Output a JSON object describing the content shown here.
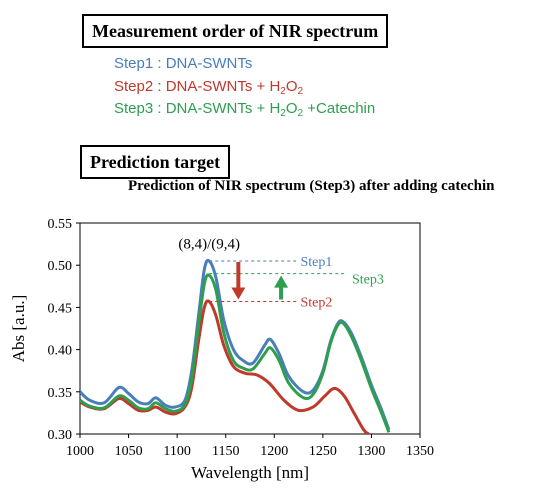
{
  "measurement_box": {
    "title": "Measurement order of NIR spectrum"
  },
  "steps": [
    {
      "prefix": "Step1 : DNA-SWNTs",
      "h2o2": "",
      "suffix": "",
      "color": "#4a7ebb"
    },
    {
      "prefix": "Step2 : DNA-SWNTs + H",
      "h2o2": "2",
      "mid": "O",
      "h2o2b": "2",
      "suffix": "",
      "color": "#c0392b"
    },
    {
      "prefix": "Step3 : DNA-SWNTs + H",
      "h2o2": "2",
      "mid": "O",
      "h2o2b": "2",
      "suffix": " +Catechin",
      "color": "#2e9e4f"
    }
  ],
  "prediction_box": {
    "title": "Prediction target"
  },
  "chart_data": {
    "type": "line",
    "title": "Prediction of NIR spectrum (Step3) after adding catechin",
    "xlabel": "Wavelength [nm]",
    "ylabel": "Abs [a.u.]",
    "xlim": [
      1000,
      1350
    ],
    "ylim": [
      0.3,
      0.55
    ],
    "xticks": [
      "1000",
      "1050",
      "1100",
      "1150",
      "1200",
      "1250",
      "1300",
      "1350"
    ],
    "yticks": [
      "0.30",
      "0.35",
      "0.40",
      "0.45",
      "0.50",
      "0.55"
    ],
    "series": [
      {
        "name": "Step1",
        "color": "#4a7ebb",
        "points": [
          [
            1000,
            0.35
          ],
          [
            1010,
            0.34
          ],
          [
            1025,
            0.337
          ],
          [
            1040,
            0.355
          ],
          [
            1050,
            0.348
          ],
          [
            1060,
            0.338
          ],
          [
            1070,
            0.336
          ],
          [
            1078,
            0.343
          ],
          [
            1088,
            0.334
          ],
          [
            1098,
            0.332
          ],
          [
            1108,
            0.34
          ],
          [
            1115,
            0.375
          ],
          [
            1122,
            0.44
          ],
          [
            1128,
            0.495
          ],
          [
            1133,
            0.505
          ],
          [
            1140,
            0.485
          ],
          [
            1148,
            0.435
          ],
          [
            1158,
            0.4
          ],
          [
            1168,
            0.387
          ],
          [
            1178,
            0.384
          ],
          [
            1190,
            0.405
          ],
          [
            1196,
            0.412
          ],
          [
            1205,
            0.395
          ],
          [
            1215,
            0.368
          ],
          [
            1230,
            0.35
          ],
          [
            1240,
            0.352
          ],
          [
            1250,
            0.375
          ],
          [
            1258,
            0.41
          ],
          [
            1266,
            0.432
          ],
          [
            1272,
            0.432
          ],
          [
            1280,
            0.418
          ],
          [
            1290,
            0.39
          ],
          [
            1300,
            0.358
          ],
          [
            1310,
            0.33
          ],
          [
            1318,
            0.305
          ]
        ]
      },
      {
        "name": "Step2",
        "color": "#c0392b",
        "points": [
          [
            1000,
            0.338
          ],
          [
            1010,
            0.332
          ],
          [
            1025,
            0.33
          ],
          [
            1040,
            0.342
          ],
          [
            1050,
            0.336
          ],
          [
            1060,
            0.328
          ],
          [
            1070,
            0.328
          ],
          [
            1078,
            0.332
          ],
          [
            1088,
            0.326
          ],
          [
            1098,
            0.324
          ],
          [
            1108,
            0.332
          ],
          [
            1115,
            0.355
          ],
          [
            1122,
            0.41
          ],
          [
            1128,
            0.45
          ],
          [
            1133,
            0.457
          ],
          [
            1140,
            0.44
          ],
          [
            1148,
            0.405
          ],
          [
            1158,
            0.38
          ],
          [
            1170,
            0.372
          ],
          [
            1182,
            0.37
          ],
          [
            1195,
            0.36
          ],
          [
            1210,
            0.34
          ],
          [
            1225,
            0.328
          ],
          [
            1240,
            0.332
          ],
          [
            1252,
            0.345
          ],
          [
            1262,
            0.354
          ],
          [
            1272,
            0.345
          ],
          [
            1282,
            0.325
          ],
          [
            1292,
            0.305
          ],
          [
            1297,
            0.3
          ]
        ]
      },
      {
        "name": "Step3",
        "color": "#2e9e4f",
        "points": [
          [
            1000,
            0.34
          ],
          [
            1010,
            0.333
          ],
          [
            1025,
            0.331
          ],
          [
            1040,
            0.345
          ],
          [
            1050,
            0.34
          ],
          [
            1060,
            0.331
          ],
          [
            1070,
            0.33
          ],
          [
            1078,
            0.337
          ],
          [
            1088,
            0.33
          ],
          [
            1098,
            0.327
          ],
          [
            1108,
            0.335
          ],
          [
            1115,
            0.365
          ],
          [
            1122,
            0.428
          ],
          [
            1128,
            0.478
          ],
          [
            1133,
            0.488
          ],
          [
            1140,
            0.47
          ],
          [
            1148,
            0.42
          ],
          [
            1158,
            0.387
          ],
          [
            1168,
            0.378
          ],
          [
            1178,
            0.377
          ],
          [
            1190,
            0.395
          ],
          [
            1196,
            0.402
          ],
          [
            1205,
            0.387
          ],
          [
            1215,
            0.36
          ],
          [
            1230,
            0.343
          ],
          [
            1240,
            0.347
          ],
          [
            1250,
            0.372
          ],
          [
            1258,
            0.408
          ],
          [
            1266,
            0.43
          ],
          [
            1272,
            0.43
          ],
          [
            1280,
            0.414
          ],
          [
            1290,
            0.386
          ],
          [
            1300,
            0.354
          ],
          [
            1310,
            0.326
          ],
          [
            1318,
            0.302
          ]
        ]
      }
    ],
    "annotations": {
      "peak_label": "(8,4)/(9,4)",
      "step1_label": "Step1",
      "step2_label": "Step2",
      "step3_label": "Step3",
      "step1_level": 0.505,
      "step2_level": 0.457,
      "step3_level": 0.49
    }
  }
}
